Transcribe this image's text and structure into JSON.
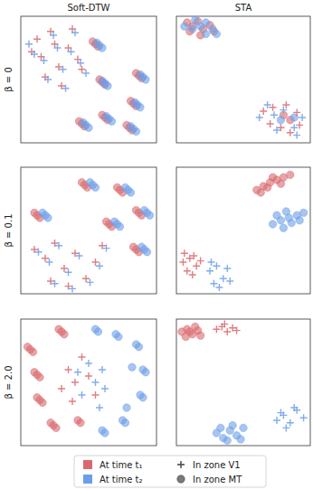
{
  "column_titles": [
    "Soft-DTW",
    "STA"
  ],
  "row_labels": [
    "β = 0",
    "β = 0.1",
    "β = 2.0"
  ],
  "legend_entries": [
    {
      "label": "At time t₁",
      "color": "#d9696d",
      "marker": "square"
    },
    {
      "label": "At time t₂",
      "color": "#6d9ee8",
      "marker": "square"
    },
    {
      "label": "In zone V1",
      "color": "#222222",
      "marker": "plus"
    },
    {
      "label": "In zone MT",
      "color": "#222222",
      "marker": "circle"
    }
  ],
  "chart_data": [
    {
      "type": "scatter",
      "xlim": [
        0,
        100
      ],
      "ylim": [
        0,
        100
      ],
      "tick_labels": false,
      "series": [
        {
          "color": "#d9696d",
          "marker": "circle",
          "x": [
            53,
            55,
            57,
            58,
            60,
            62,
            85,
            87,
            89,
            81,
            83,
            85,
            60,
            62,
            64,
            78,
            80,
            82,
            43,
            45,
            47
          ],
          "y": [
            80,
            78,
            76,
            50,
            48,
            46,
            55,
            53,
            51,
            33,
            31,
            29,
            22,
            20,
            18,
            14,
            12,
            10,
            17,
            15,
            13
          ]
        },
        {
          "color": "#6d9ee8",
          "marker": "circle",
          "x": [
            56,
            58,
            60,
            60,
            62,
            64,
            88,
            90,
            92,
            84,
            86,
            88,
            63,
            65,
            67,
            81,
            83,
            85,
            46,
            48,
            50
          ],
          "y": [
            79,
            77,
            75,
            49,
            47,
            45,
            54,
            52,
            50,
            32,
            30,
            28,
            21,
            19,
            17,
            13,
            11,
            9,
            16,
            14,
            12
          ]
        },
        {
          "color": "#d9696d",
          "marker": "plus",
          "x": [
            8,
            15,
            22,
            28,
            35,
            42,
            18,
            30,
            45,
            12,
            38,
            25
          ],
          "y": [
            72,
            68,
            88,
            60,
            75,
            66,
            52,
            45,
            58,
            82,
            90,
            78
          ]
        },
        {
          "color": "#6d9ee8",
          "marker": "plus",
          "x": [
            10,
            17,
            24,
            31,
            37,
            44,
            20,
            33,
            48,
            6,
            40,
            27
          ],
          "y": [
            70,
            65,
            85,
            58,
            72,
            63,
            50,
            43,
            55,
            78,
            87,
            75
          ]
        }
      ]
    },
    {
      "type": "scatter",
      "xlim": [
        0,
        100
      ],
      "ylim": [
        0,
        100
      ],
      "tick_labels": false,
      "series": [
        {
          "color": "#d9696d",
          "marker": "circle",
          "x": [
            8,
            12,
            16,
            20,
            25,
            28,
            10,
            18,
            80,
            85
          ],
          "y": [
            95,
            92,
            96,
            90,
            93,
            88,
            88,
            85,
            22,
            18
          ]
        },
        {
          "color": "#6d9ee8",
          "marker": "circle",
          "x": [
            6,
            14,
            18,
            22,
            27,
            30,
            12,
            22,
            78,
            88
          ],
          "y": [
            92,
            97,
            92,
            95,
            90,
            86,
            90,
            86,
            18,
            20
          ]
        },
        {
          "color": "#d9696d",
          "marker": "plus",
          "x": [
            65,
            72,
            78,
            85,
            90,
            70,
            82,
            92
          ],
          "y": [
            25,
            28,
            12,
            8,
            24,
            15,
            30,
            14
          ]
        },
        {
          "color": "#6d9ee8",
          "marker": "plus",
          "x": [
            62,
            68,
            75,
            88,
            94,
            73,
            80,
            90
          ],
          "y": [
            20,
            30,
            10,
            12,
            20,
            22,
            26,
            6
          ]
        }
      ]
    },
    {
      "type": "scatter",
      "xlim": [
        0,
        100
      ],
      "ylim": [
        0,
        100
      ],
      "tick_labels": false,
      "series": [
        {
          "color": "#d9696d",
          "marker": "circle",
          "x": [
            10,
            12,
            14,
            45,
            47,
            49,
            71,
            73,
            75,
            85,
            87,
            89,
            63,
            65,
            67,
            83,
            85,
            87
          ],
          "y": [
            64,
            62,
            60,
            88,
            86,
            84,
            84,
            82,
            80,
            66,
            64,
            62,
            57,
            55,
            53,
            37,
            35,
            33
          ]
        },
        {
          "color": "#6d9ee8",
          "marker": "circle",
          "x": [
            16,
            18,
            20,
            51,
            53,
            55,
            77,
            79,
            81,
            91,
            93,
            95,
            69,
            71,
            73,
            89,
            91,
            93
          ],
          "y": [
            64,
            62,
            60,
            88,
            86,
            84,
            84,
            82,
            80,
            66,
            64,
            62,
            57,
            55,
            53,
            37,
            35,
            33
          ]
        },
        {
          "color": "#d9696d",
          "marker": "plus",
          "x": [
            10,
            18,
            25,
            32,
            40,
            48,
            55,
            22,
            35,
            60
          ],
          "y": [
            35,
            28,
            40,
            20,
            32,
            12,
            25,
            10,
            6,
            38
          ]
        },
        {
          "color": "#6d9ee8",
          "marker": "plus",
          "x": [
            13,
            21,
            28,
            35,
            43,
            51,
            58,
            25,
            38,
            63
          ],
          "y": [
            33,
            25,
            38,
            17,
            30,
            9,
            22,
            8,
            4,
            36
          ]
        }
      ]
    },
    {
      "type": "scatter",
      "xlim": [
        0,
        100
      ],
      "ylim": [
        0,
        100
      ],
      "tick_labels": false,
      "series": [
        {
          "color": "#d9696d",
          "marker": "circle",
          "x": [
            60,
            65,
            70,
            75,
            80,
            85,
            68,
            78,
            72,
            63
          ],
          "y": [
            82,
            85,
            88,
            90,
            92,
            94,
            84,
            87,
            92,
            80
          ]
        },
        {
          "color": "#6d9ee8",
          "marker": "circle",
          "x": [
            72,
            78,
            84,
            90,
            95,
            80,
            86,
            75,
            92,
            82
          ],
          "y": [
            55,
            58,
            60,
            62,
            64,
            52,
            56,
            62,
            58,
            65
          ]
        },
        {
          "color": "#d9696d",
          "marker": "plus",
          "x": [
            5,
            10,
            15,
            8,
            13,
            18,
            6,
            12
          ],
          "y": [
            25,
            28,
            22,
            18,
            30,
            26,
            32,
            15
          ]
        },
        {
          "color": "#6d9ee8",
          "marker": "plus",
          "x": [
            25,
            30,
            35,
            28,
            38,
            32,
            26,
            40
          ],
          "y": [
            18,
            22,
            12,
            8,
            20,
            5,
            25,
            10
          ]
        }
      ]
    },
    {
      "type": "scatter",
      "xlim": [
        0,
        100
      ],
      "ylim": [
        0,
        100
      ],
      "tick_labels": false,
      "series": [
        {
          "color": "#d9696d",
          "marker": "circle",
          "x": [
            5,
            7,
            9,
            10,
            12,
            14,
            12,
            14,
            16,
            22,
            24,
            26,
            28,
            30,
            32,
            42,
            44
          ],
          "y": [
            78,
            76,
            74,
            58,
            56,
            54,
            38,
            36,
            34,
            18,
            16,
            14,
            92,
            90,
            88,
            20,
            18
          ]
        },
        {
          "color": "#6d9ee8",
          "marker": "circle",
          "x": [
            55,
            57,
            70,
            72,
            85,
            87,
            90,
            92,
            88,
            90,
            75,
            77,
            60,
            62,
            82,
            78
          ],
          "y": [
            92,
            90,
            88,
            86,
            80,
            78,
            60,
            58,
            40,
            38,
            20,
            18,
            12,
            10,
            62,
            30
          ]
        },
        {
          "color": "#d9696d",
          "marker": "plus",
          "x": [
            35,
            40,
            45,
            30,
            50,
            38,
            55
          ],
          "y": [
            60,
            50,
            70,
            45,
            55,
            35,
            40
          ]
        },
        {
          "color": "#6d9ee8",
          "marker": "plus",
          "x": [
            50,
            55,
            60,
            45,
            62,
            58,
            42
          ],
          "y": [
            65,
            50,
            60,
            40,
            45,
            30,
            58
          ]
        }
      ]
    },
    {
      "type": "scatter",
      "xlim": [
        0,
        100
      ],
      "ylim": [
        0,
        100
      ],
      "tick_labels": false,
      "series": [
        {
          "color": "#d9696d",
          "marker": "circle",
          "x": [
            4,
            8,
            12,
            16,
            7,
            14,
            10,
            18
          ],
          "y": [
            90,
            92,
            88,
            91,
            86,
            94,
            90,
            87
          ]
        },
        {
          "color": "#6d9ee8",
          "marker": "circle",
          "x": [
            30,
            35,
            40,
            45,
            50,
            38,
            48,
            42,
            33
          ],
          "y": [
            10,
            6,
            12,
            8,
            14,
            4,
            5,
            16,
            14
          ]
        },
        {
          "color": "#d9696d",
          "marker": "plus",
          "x": [
            30,
            34,
            38,
            42,
            45,
            36
          ],
          "y": [
            92,
            94,
            90,
            93,
            91,
            96
          ]
        },
        {
          "color": "#6d9ee8",
          "marker": "plus",
          "x": [
            75,
            80,
            85,
            90,
            95,
            82,
            88,
            78
          ],
          "y": [
            20,
            24,
            18,
            28,
            22,
            14,
            30,
            26
          ]
        }
      ]
    }
  ]
}
